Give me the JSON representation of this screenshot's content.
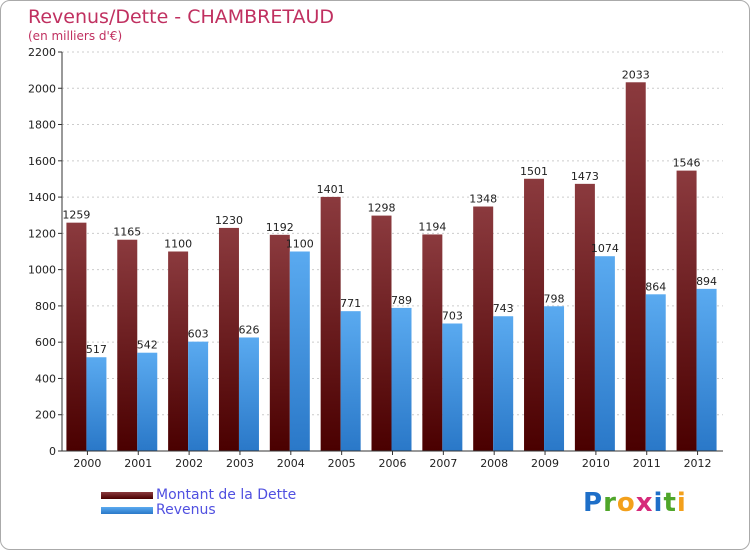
{
  "header": {
    "title": "Revenus/Dette - CHAMBRETAUD",
    "subtitle": "(en milliers d'€)"
  },
  "logo": {
    "text": "Proxiti",
    "letter_colors": [
      "#1e6fc8",
      "#4fa62a",
      "#f3a01b",
      "#d62a7a",
      "#1e6fc8",
      "#4fa62a",
      "#f3a01b"
    ]
  },
  "colors": {
    "dette_top": "#8b3a3e",
    "dette_bottom": "#4a0000",
    "revenus_top": "#5aaaf0",
    "revenus_bottom": "#2a78c8",
    "axis": "#333333",
    "grid": "#cccccc",
    "text": "#222222"
  },
  "chart_data": {
    "type": "bar",
    "categories": [
      "2000",
      "2001",
      "2002",
      "2003",
      "2004",
      "2005",
      "2006",
      "2007",
      "2008",
      "2009",
      "2010",
      "2011",
      "2012"
    ],
    "series": [
      {
        "name": "Montant de la Dette",
        "values": [
          1259,
          1165,
          1100,
          1230,
          1192,
          1401,
          1298,
          1194,
          1348,
          1501,
          1473,
          2033,
          1546
        ]
      },
      {
        "name": "Revenus",
        "values": [
          517,
          542,
          603,
          626,
          1100,
          771,
          789,
          703,
          743,
          798,
          1074,
          864,
          894
        ]
      }
    ],
    "ylim": [
      0,
      2200
    ],
    "yticks": [
      "0",
      "200",
      "400",
      "600",
      "800",
      "1000",
      "1200",
      "1400",
      "1600",
      "1800",
      "2000",
      "2200"
    ],
    "grid": true,
    "legend": "bottom-left"
  }
}
